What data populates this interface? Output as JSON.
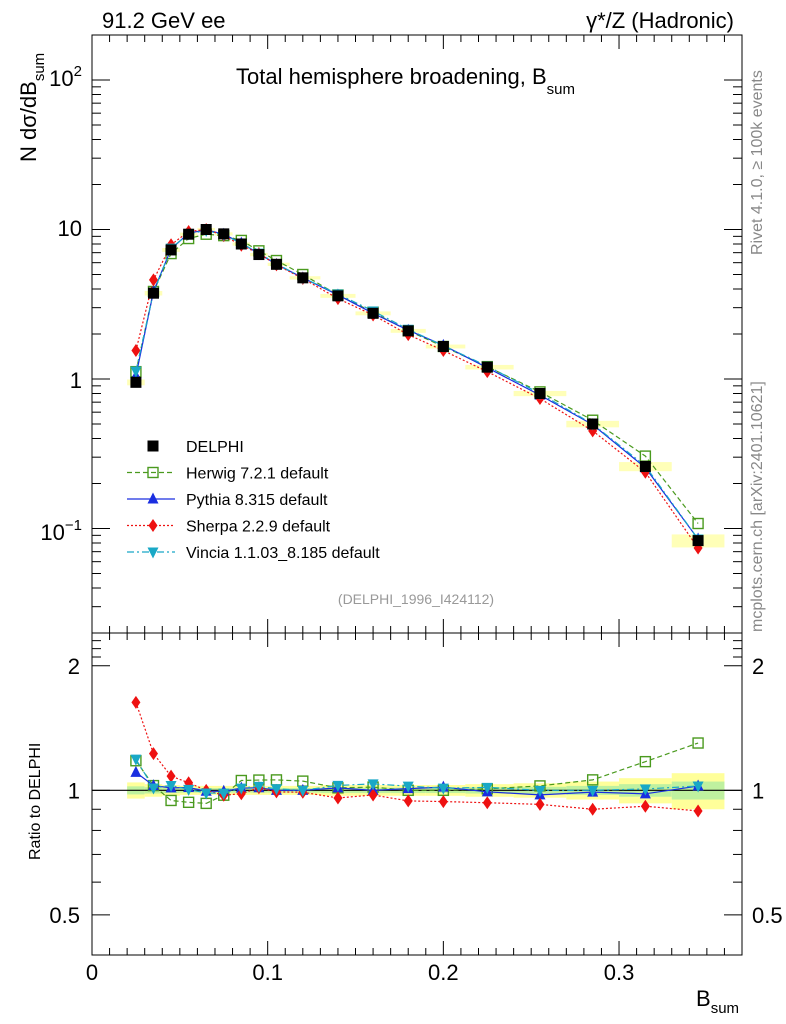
{
  "header": {
    "left": "91.2 GeV ee",
    "right": "γ*/Z (Hadronic)"
  },
  "side_labels": {
    "top": "Rivet 4.1.0, ≥ 100k events",
    "bottom": "mcplots.cern.ch [arXiv:2401.10621]"
  },
  "chart_data": {
    "type": "line",
    "title": "Total hemisphere broadening, B",
    "title_sub": "sum",
    "ylabel": "N  dσ/dB",
    "ylabel_sub": "sum",
    "xlabel": "B",
    "xlabel_sub": "sum",
    "ratio_ylabel": "Ratio to DELPHI",
    "analysis_tag": "(DELPHI_1996_I424112)",
    "xlim": [
      0,
      0.37
    ],
    "ylim": [
      0.02,
      200
    ],
    "ratio_ylim": [
      0.4,
      2.4
    ],
    "yscale": "log",
    "x_ticks": [
      "0",
      "0.1",
      "0.2",
      "0.3"
    ],
    "y_ticks": [
      "10^-1",
      "1",
      "10",
      "10^2"
    ],
    "ratio_ticks": [
      "0.5",
      "1",
      "2"
    ],
    "x": [
      0.025,
      0.035,
      0.045,
      0.055,
      0.065,
      0.075,
      0.085,
      0.095,
      0.105,
      0.12,
      0.14,
      0.16,
      0.18,
      0.2,
      0.225,
      0.255,
      0.285,
      0.315,
      0.345
    ],
    "data_band": [
      0.045,
      0.035,
      0.03,
      0.025,
      0.025,
      0.025,
      0.025,
      0.025,
      0.025,
      0.025,
      0.03,
      0.03,
      0.03,
      0.03,
      0.035,
      0.04,
      0.05,
      0.07,
      0.1
    ],
    "series": [
      {
        "name": "DELPHI",
        "color": "#000000",
        "dash": "",
        "marker": "square-filled",
        "values": [
          0.95,
          3.75,
          7.3,
          9.3,
          10.0,
          9.35,
          8.0,
          6.8,
          5.85,
          4.75,
          3.6,
          2.75,
          2.1,
          1.65,
          1.2,
          0.8,
          0.5,
          0.26,
          0.083
        ]
      },
      {
        "name": "Herwig 7.2.1 default",
        "color": "#4a9a1e",
        "dash": "5,3",
        "marker": "square-open",
        "values": [
          1.12,
          3.85,
          6.9,
          8.7,
          9.3,
          9.1,
          8.45,
          7.2,
          6.2,
          5.0,
          3.65,
          2.8,
          2.1,
          1.65,
          1.21,
          0.82,
          0.53,
          0.305,
          0.108
        ]
      },
      {
        "name": "Pythia 8.315 default",
        "color": "#1a2ee0",
        "dash": "",
        "marker": "triangle-up",
        "values": [
          1.05,
          3.85,
          7.4,
          9.45,
          9.95,
          9.3,
          8.1,
          6.9,
          5.85,
          4.75,
          3.65,
          2.75,
          2.12,
          1.68,
          1.19,
          0.78,
          0.495,
          0.255,
          0.085
        ]
      },
      {
        "name": "Sherpa 2.2.9 default",
        "color": "#ee1111",
        "dash": "2,2",
        "marker": "diamond",
        "values": [
          1.55,
          4.6,
          7.9,
          9.7,
          10.0,
          9.1,
          7.85,
          6.9,
          5.8,
          4.7,
          3.45,
          2.68,
          1.98,
          1.55,
          1.12,
          0.74,
          0.45,
          0.238,
          0.074
        ]
      },
      {
        "name": "Vincia 1.1.03_8.185 default",
        "color": "#19a8c6",
        "dash": "7,3,2,3",
        "marker": "triangle-down",
        "values": [
          1.13,
          3.8,
          7.5,
          9.35,
          9.85,
          9.2,
          8.1,
          6.95,
          5.9,
          4.75,
          3.7,
          2.85,
          2.15,
          1.67,
          1.22,
          0.8,
          0.5,
          0.262,
          0.085
        ]
      }
    ],
    "legend_position": "middle-left"
  }
}
